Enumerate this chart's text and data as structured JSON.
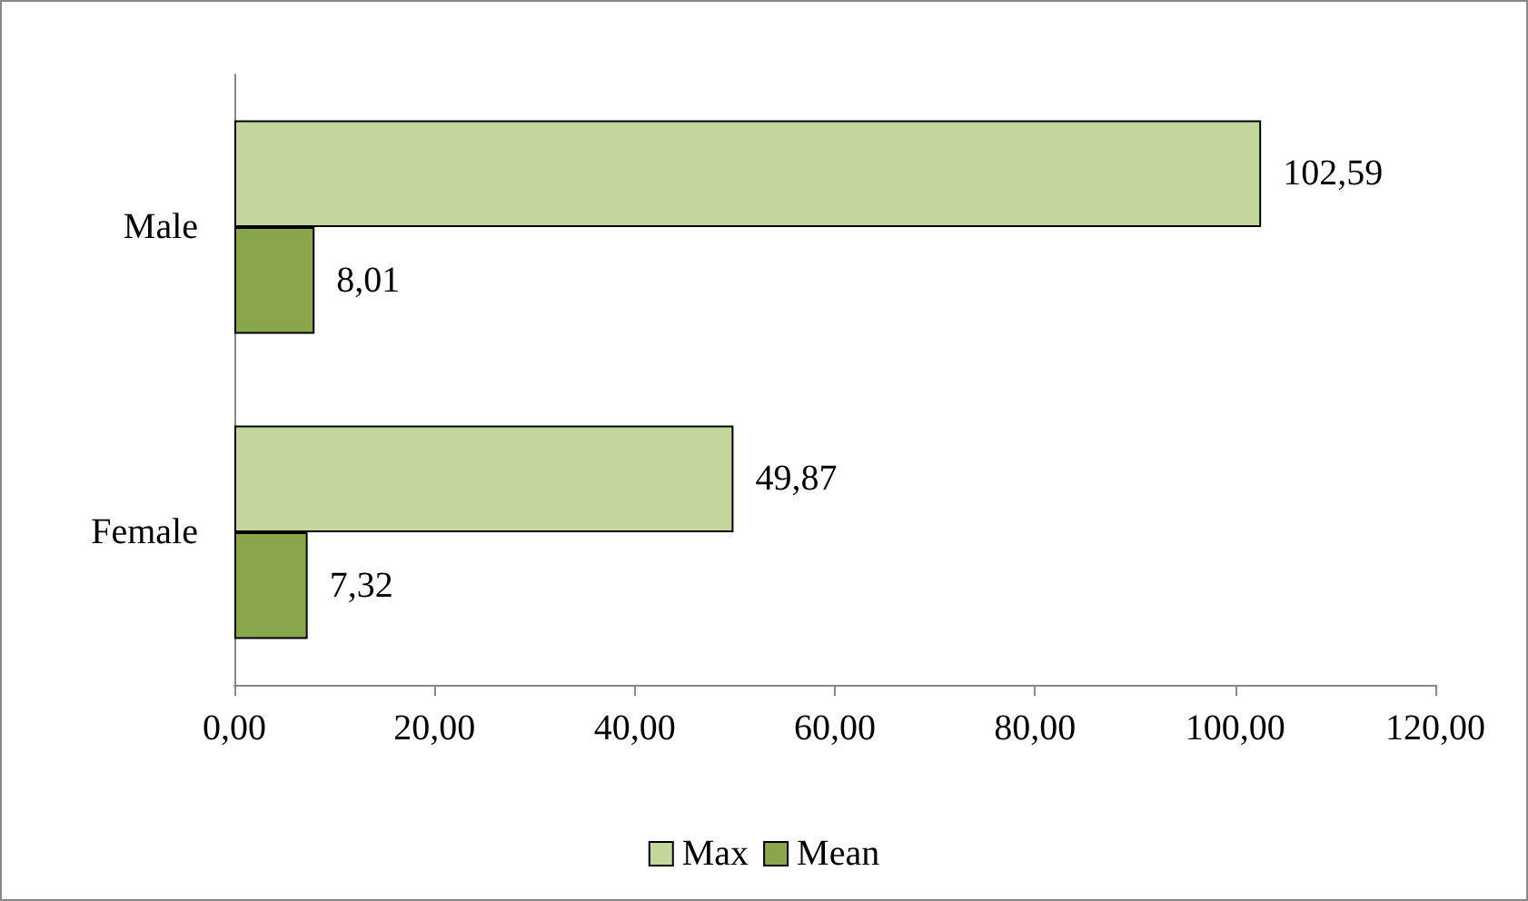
{
  "chart_data": {
    "type": "bar",
    "orientation": "horizontal",
    "categories": [
      "Male",
      "Female"
    ],
    "series": [
      {
        "name": "Max",
        "color": "#c3d69b",
        "values": [
          102.59,
          49.87
        ],
        "value_labels": [
          "102,59",
          "49,87"
        ]
      },
      {
        "name": "Mean",
        "color": "#8aa64b",
        "values": [
          8.01,
          7.32
        ],
        "value_labels": [
          "8,01",
          "7,32"
        ]
      }
    ],
    "xlim": [
      0,
      120
    ],
    "xticks": [
      {
        "value": 0,
        "label": "0,00"
      },
      {
        "value": 20,
        "label": "20,00"
      },
      {
        "value": 40,
        "label": "40,00"
      },
      {
        "value": 60,
        "label": "60,00"
      },
      {
        "value": 80,
        "label": "80,00"
      },
      {
        "value": 100,
        "label": "100,00"
      },
      {
        "value": 120,
        "label": "120,00"
      }
    ],
    "grid": false,
    "legend": "bottom"
  }
}
